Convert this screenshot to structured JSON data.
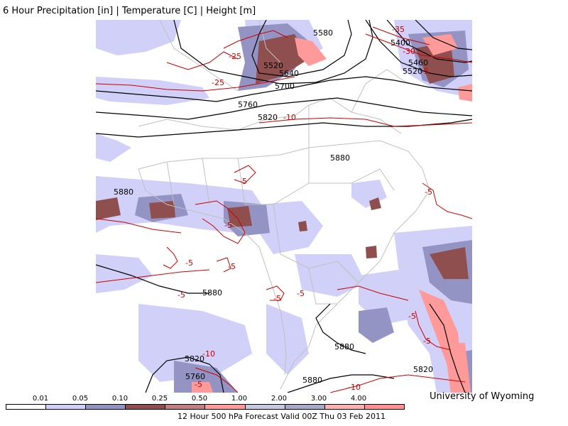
{
  "header": {
    "title": "6 Hour Precipitation [in] | Temperature [C] | Height [m]"
  },
  "credit": "University of Wyoming",
  "footer": "12 Hour 500 hPa Forecast Valid 00Z Thu 03 Feb 2011",
  "legend": {
    "ticks": [
      "0.01",
      "0.05",
      "0.10",
      "0.25",
      "0.50",
      "1.00",
      "2.00",
      "3.00",
      "4.00"
    ],
    "colors": [
      "#ffffff",
      "#d0d0f8",
      "#9494c4",
      "#8f4f4f",
      "#c08080",
      "#ff9a9a",
      "#c8c8e0",
      "#a8a8c8",
      "#ffb0b0",
      "#ff9090"
    ]
  },
  "colors": {
    "height_contour": "#000000",
    "temperature_contour": "#cc0000",
    "borders": "#c0c0c0"
  },
  "height_labels": [
    "5580",
    "5400",
    "5520",
    "5460",
    "5520",
    "5640",
    "5700",
    "5760",
    "5820",
    "5880",
    "5880",
    "5880",
    "5880",
    "5880",
    "5820",
    "5820",
    "5760"
  ],
  "temperature_labels": [
    "-35",
    "-30",
    "-25",
    "-25",
    "-5",
    "-10",
    "-5",
    "-5",
    "-5",
    "-5",
    "-5",
    "-5",
    "-5",
    "-5",
    "-5",
    "-5",
    "-10",
    "-10",
    "-5"
  ]
}
